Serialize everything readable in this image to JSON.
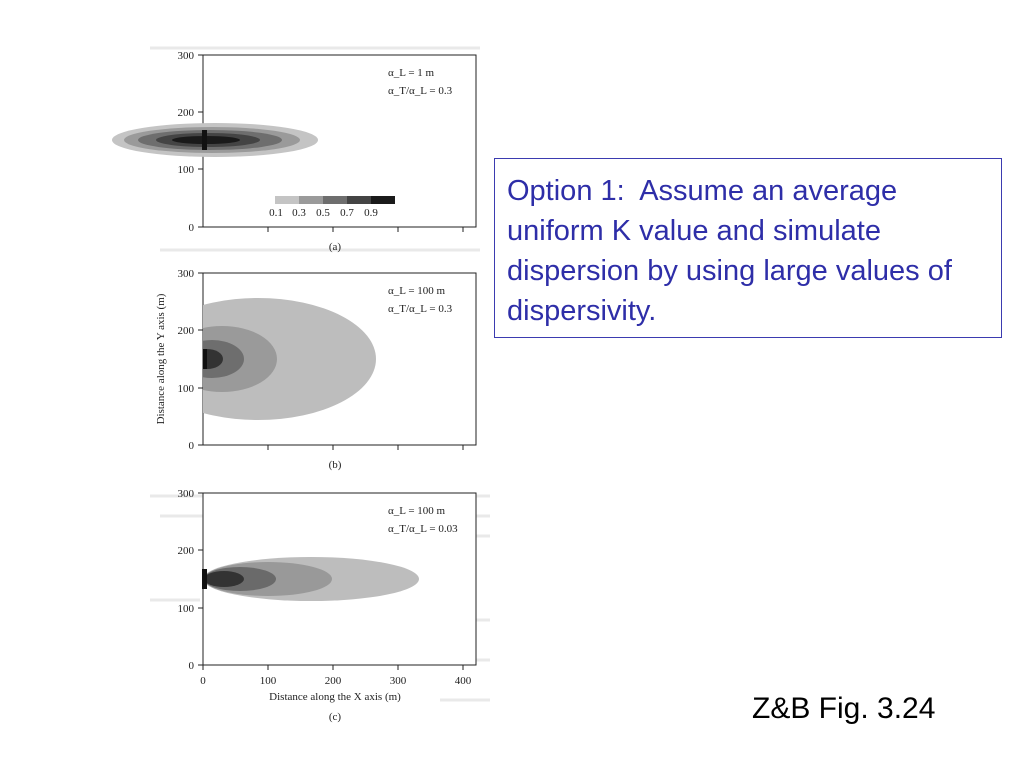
{
  "panels": [
    {
      "label": "(a)",
      "alpha_L": "α_L = 1 m",
      "ratio": "α_T/α_L = 0.3",
      "y_ticks": [
        "300",
        "200",
        "100",
        "0"
      ],
      "legend_values": [
        "0.1",
        "0.3",
        "0.5",
        "0.7",
        "0.9"
      ]
    },
    {
      "label": "(b)",
      "alpha_L": "α_L = 100 m",
      "ratio": "α_T/α_L = 0.3",
      "y_ticks": [
        "300",
        "200",
        "100",
        "0"
      ]
    },
    {
      "label": "(c)",
      "alpha_L": "α_L = 100 m",
      "ratio": "α_T/α_L = 0.03",
      "y_ticks": [
        "300",
        "200",
        "100",
        "0"
      ],
      "x_ticks": [
        "0",
        "100",
        "200",
        "300",
        "400"
      ]
    }
  ],
  "y_axis_title": "Distance along the Y axis (m)",
  "x_axis_title": "Distance along the X axis (m)",
  "callout_text": "Option 1:  Assume an average uniform K value and simulate dispersion by using large values of dispersivity.",
  "caption": "Z&B Fig. 3.24",
  "colors": {
    "callout_text": "#2e2ea8",
    "callout_border": "#3b3bb0",
    "plume_light": "#bdbdbd",
    "plume_dark": "#1a1a1a"
  }
}
